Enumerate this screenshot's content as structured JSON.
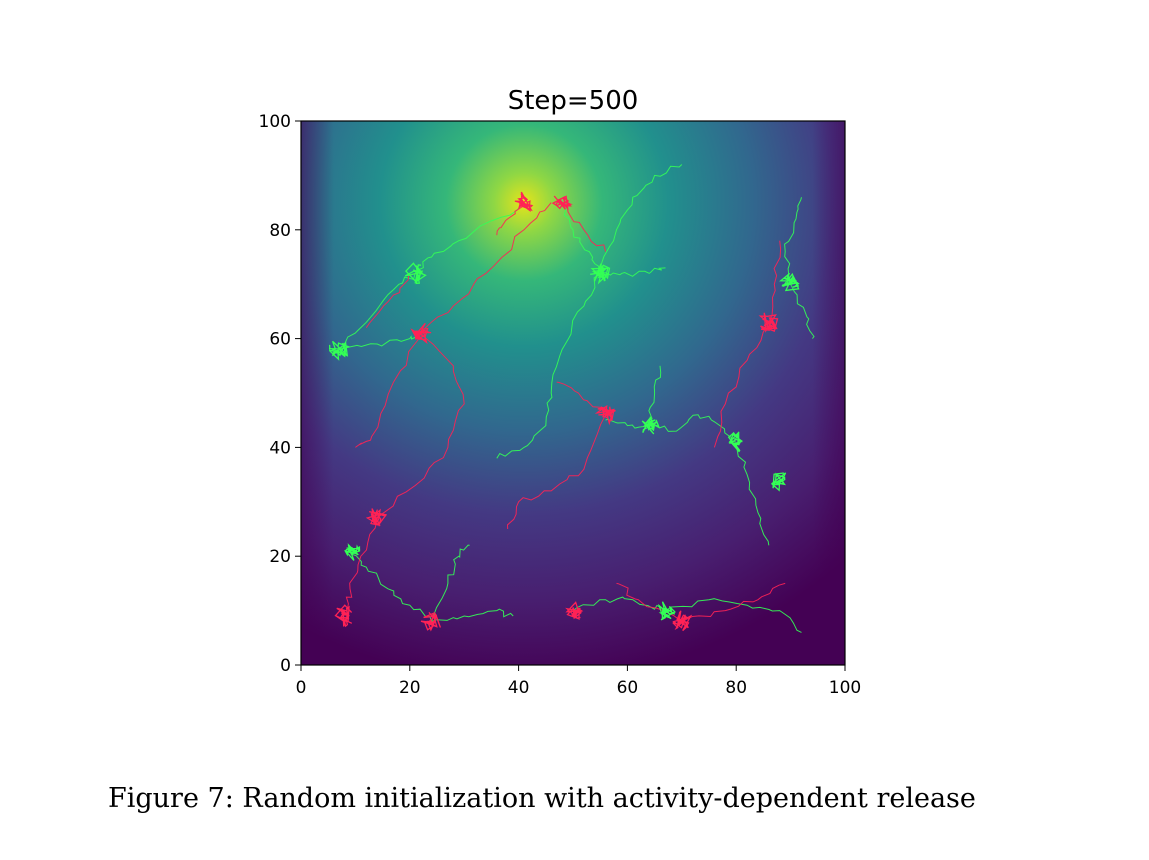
{
  "caption": "Figure 7: Random initialization with activity-dependent release",
  "chart_data": {
    "type": "heatmap",
    "title": "Step=500",
    "xlabel": "",
    "ylabel": "",
    "xlim": [
      0,
      100
    ],
    "ylim": [
      0,
      100
    ],
    "xticks": [
      0,
      20,
      40,
      60,
      80,
      100
    ],
    "yticks": [
      0,
      20,
      40,
      60,
      80,
      100
    ],
    "grid": false,
    "colormap": "viridis",
    "field_peak": [
      41,
      85
    ],
    "trail_colors": {
      "green": "#33ff55",
      "red": "#ff2255"
    },
    "clusters": {
      "green": [
        [
          7,
          58
        ],
        [
          21,
          72
        ],
        [
          55,
          72
        ],
        [
          64,
          44
        ],
        [
          80,
          41
        ],
        [
          90,
          70
        ],
        [
          67,
          10
        ],
        [
          9,
          21
        ],
        [
          88,
          34
        ]
      ],
      "red": [
        [
          22,
          61
        ],
        [
          41,
          85
        ],
        [
          48,
          85
        ],
        [
          56,
          46
        ],
        [
          70,
          8
        ],
        [
          86,
          63
        ],
        [
          8,
          9
        ],
        [
          14,
          27
        ],
        [
          24,
          8
        ],
        [
          50,
          10
        ]
      ]
    },
    "trails": [
      {
        "color": "green",
        "points": [
          [
            7,
            58
          ],
          [
            12,
            63
          ],
          [
            17,
            69
          ],
          [
            21,
            72
          ]
        ]
      },
      {
        "color": "green",
        "points": [
          [
            7,
            58
          ],
          [
            14,
            59
          ],
          [
            20,
            60
          ],
          [
            22,
            61
          ]
        ]
      },
      {
        "color": "green",
        "points": [
          [
            21,
            72
          ],
          [
            24,
            75
          ],
          [
            29,
            78
          ],
          [
            36,
            82
          ],
          [
            41,
            85
          ]
        ]
      },
      {
        "color": "green",
        "points": [
          [
            55,
            72
          ],
          [
            53,
            76
          ],
          [
            50,
            80
          ],
          [
            48,
            85
          ]
        ]
      },
      {
        "color": "green",
        "points": [
          [
            55,
            72
          ],
          [
            52,
            66
          ],
          [
            48,
            58
          ],
          [
            46,
            50
          ],
          [
            45,
            44
          ],
          [
            41,
            40
          ],
          [
            36,
            38
          ]
        ]
      },
      {
        "color": "green",
        "points": [
          [
            55,
            72
          ],
          [
            58,
            80
          ],
          [
            61,
            86
          ],
          [
            65,
            90
          ],
          [
            70,
            92
          ]
        ]
      },
      {
        "color": "green",
        "points": [
          [
            55,
            72
          ],
          [
            59,
            72
          ],
          [
            64,
            72
          ],
          [
            67,
            73
          ]
        ]
      },
      {
        "color": "green",
        "points": [
          [
            64,
            44
          ],
          [
            60,
            44
          ],
          [
            56,
            45
          ]
        ]
      },
      {
        "color": "green",
        "points": [
          [
            64,
            44
          ],
          [
            69,
            43
          ],
          [
            73,
            46
          ],
          [
            77,
            44
          ],
          [
            80,
            41
          ]
        ]
      },
      {
        "color": "green",
        "points": [
          [
            64,
            44
          ],
          [
            65,
            50
          ],
          [
            66,
            55
          ]
        ]
      },
      {
        "color": "green",
        "points": [
          [
            80,
            41
          ],
          [
            82,
            35
          ],
          [
            84,
            28
          ],
          [
            86,
            22
          ]
        ]
      },
      {
        "color": "green",
        "points": [
          [
            90,
            70
          ],
          [
            89,
            76
          ],
          [
            91,
            82
          ],
          [
            92,
            86
          ]
        ]
      },
      {
        "color": "green",
        "points": [
          [
            90,
            70
          ],
          [
            93,
            64
          ],
          [
            94,
            60
          ]
        ]
      },
      {
        "color": "green",
        "points": [
          [
            67,
            10
          ],
          [
            61,
            12
          ],
          [
            56,
            12
          ],
          [
            50,
            10
          ]
        ]
      },
      {
        "color": "green",
        "points": [
          [
            67,
            10
          ],
          [
            75,
            12
          ],
          [
            82,
            11
          ],
          [
            88,
            10
          ],
          [
            92,
            6
          ]
        ]
      },
      {
        "color": "green",
        "points": [
          [
            9,
            21
          ],
          [
            12,
            18
          ],
          [
            16,
            14
          ],
          [
            20,
            11
          ],
          [
            24,
            8
          ]
        ]
      },
      {
        "color": "green",
        "points": [
          [
            24,
            8
          ],
          [
            30,
            9
          ],
          [
            36,
            10
          ],
          [
            39,
            9
          ]
        ]
      },
      {
        "color": "green",
        "points": [
          [
            24,
            8
          ],
          [
            27,
            15
          ],
          [
            29,
            20
          ],
          [
            31,
            22
          ]
        ]
      },
      {
        "color": "red",
        "points": [
          [
            22,
            61
          ],
          [
            28,
            66
          ],
          [
            34,
            72
          ],
          [
            41,
            80
          ],
          [
            46,
            85
          ]
        ]
      },
      {
        "color": "red",
        "points": [
          [
            22,
            61
          ],
          [
            17,
            52
          ],
          [
            13,
            42
          ],
          [
            10,
            40
          ]
        ]
      },
      {
        "color": "red",
        "points": [
          [
            22,
            61
          ],
          [
            28,
            55
          ],
          [
            30,
            48
          ],
          [
            27,
            40
          ],
          [
            21,
            33
          ],
          [
            14,
            27
          ]
        ]
      },
      {
        "color": "red",
        "points": [
          [
            14,
            27
          ],
          [
            11,
            20
          ],
          [
            9,
            14
          ],
          [
            8,
            9
          ]
        ]
      },
      {
        "color": "red",
        "points": [
          [
            21,
            72
          ],
          [
            17,
            68
          ],
          [
            12,
            62
          ]
        ]
      },
      {
        "color": "red",
        "points": [
          [
            56,
            46
          ],
          [
            51,
            50
          ],
          [
            47,
            52
          ]
        ]
      },
      {
        "color": "red",
        "points": [
          [
            56,
            46
          ],
          [
            52,
            36
          ],
          [
            46,
            32
          ],
          [
            40,
            30
          ],
          [
            38,
            25
          ]
        ]
      },
      {
        "color": "red",
        "points": [
          [
            86,
            63
          ],
          [
            82,
            56
          ],
          [
            78,
            48
          ],
          [
            76,
            40
          ]
        ]
      },
      {
        "color": "red",
        "points": [
          [
            86,
            63
          ],
          [
            87,
            70
          ],
          [
            88,
            78
          ]
        ]
      },
      {
        "color": "red",
        "points": [
          [
            70,
            8
          ],
          [
            62,
            12
          ],
          [
            58,
            15
          ]
        ]
      },
      {
        "color": "red",
        "points": [
          [
            70,
            8
          ],
          [
            78,
            10
          ],
          [
            84,
            12
          ],
          [
            89,
            15
          ]
        ]
      },
      {
        "color": "red",
        "points": [
          [
            48,
            85
          ],
          [
            52,
            80
          ],
          [
            56,
            76
          ]
        ]
      },
      {
        "color": "red",
        "points": [
          [
            41,
            85
          ],
          [
            38,
            82
          ],
          [
            36,
            79
          ]
        ]
      }
    ]
  }
}
